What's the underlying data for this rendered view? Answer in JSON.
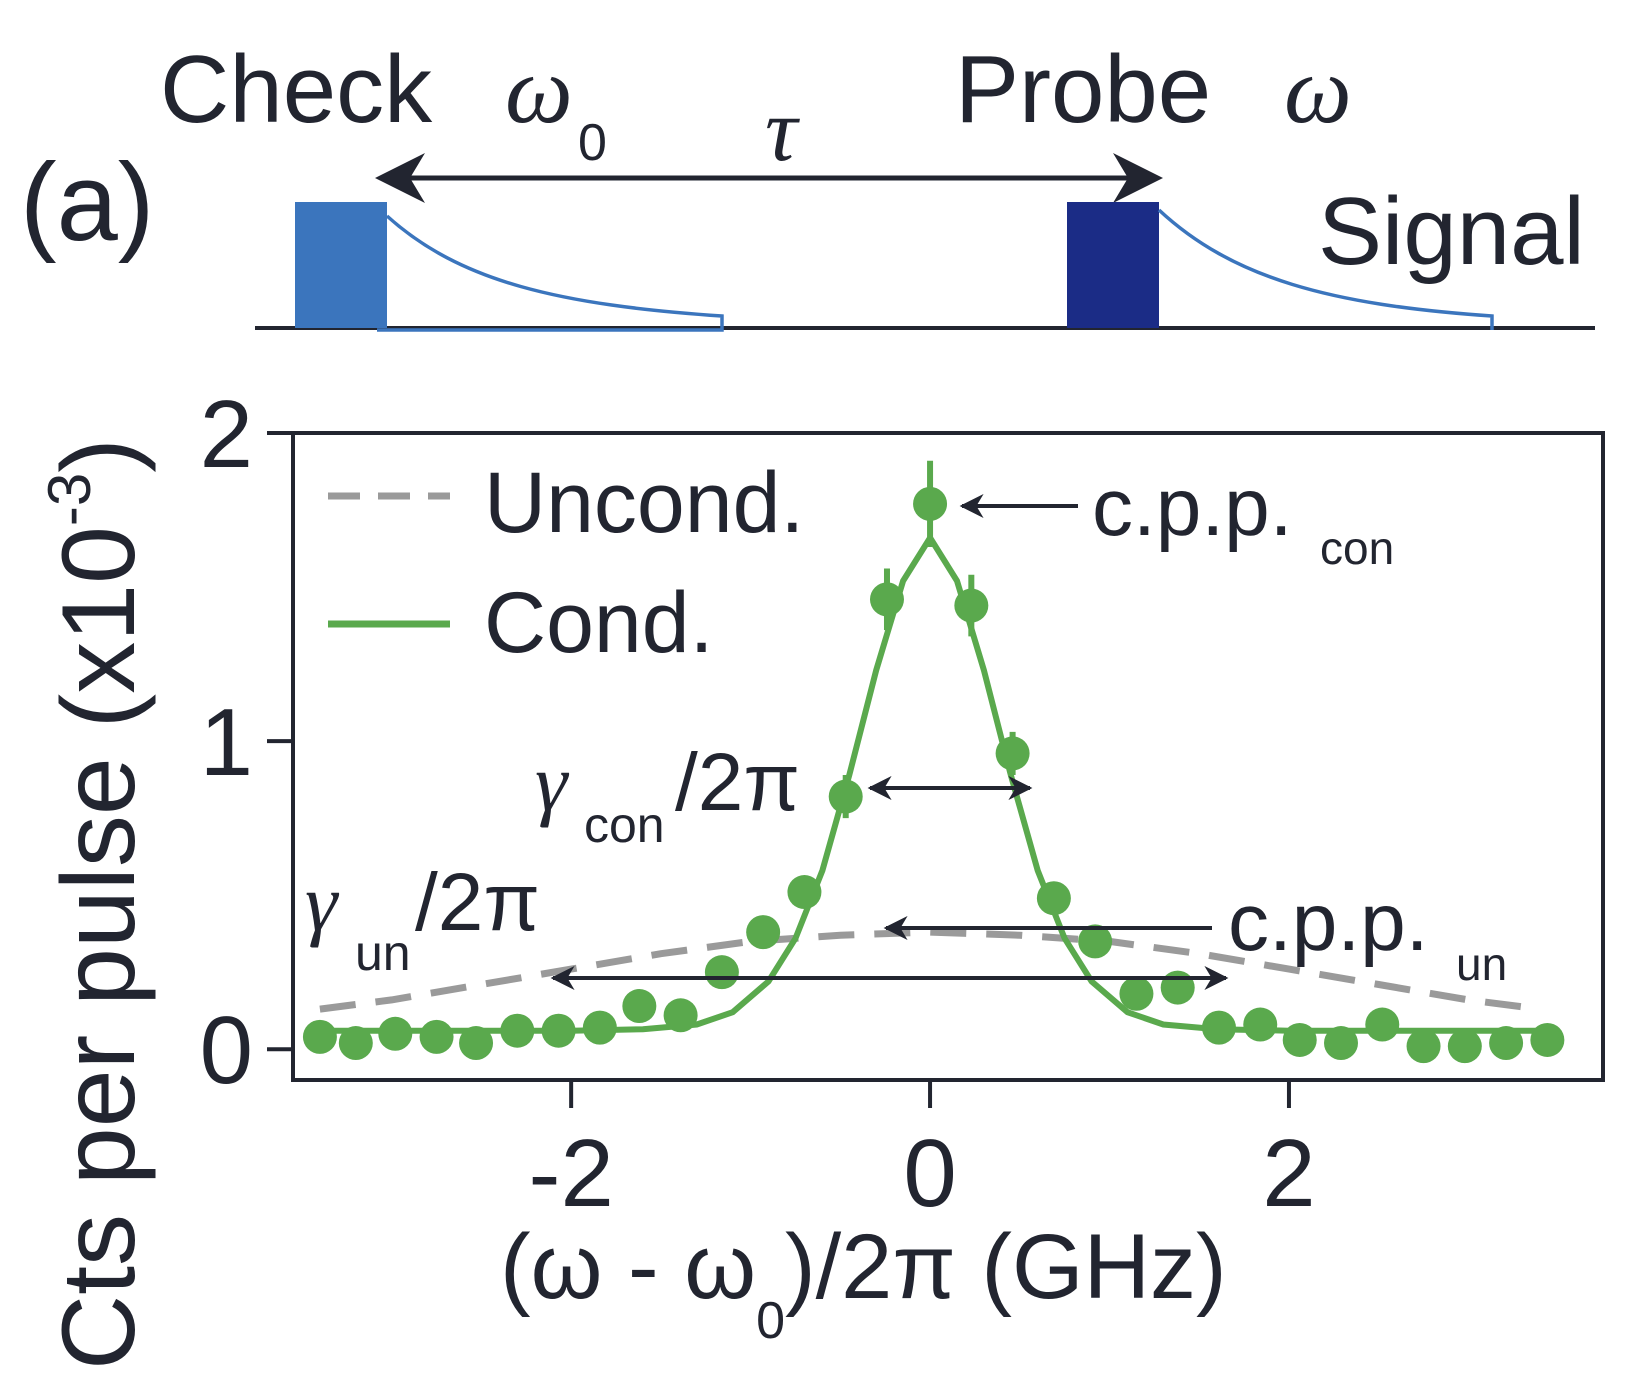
{
  "schematic": {
    "panel_label": "(a)",
    "check_label": "Check",
    "probe_label": "Probe",
    "check_symbol": "ω",
    "check_subscript": "0",
    "probe_symbol": "ω",
    "delay_symbol": "τ",
    "signal_label": "Signal",
    "check_pulse_color": "#3b75bd",
    "probe_pulse_color": "#1b2c86",
    "decay_color": "#3b75bd"
  },
  "chart_data": {
    "type": "scatter",
    "x_label": "(ω - ω",
    "x_label_subscript": "0",
    "x_label_suffix": ")/2π (GHz)",
    "y_label": "Cts per pulse (x10",
    "y_label_exp": "-3",
    "y_label_close": ")",
    "xlim": [
      -3.55,
      3.75
    ],
    "ylim": [
      -0.1,
      2.0
    ],
    "x_ticks": [
      -2,
      0,
      2
    ],
    "x_tick_labels": [
      "-2",
      "0",
      "2"
    ],
    "y_ticks": [
      0,
      1,
      2
    ],
    "y_tick_labels": [
      "0",
      "1",
      "2"
    ],
    "grid": false,
    "legend_position": "top-left",
    "legend": [
      {
        "label": "Uncond.",
        "style": "dashed",
        "color": "#9a9a9a"
      },
      {
        "label": "Cond.",
        "style": "solid",
        "color": "#5aa94d"
      }
    ],
    "series": [
      {
        "name": "Cond.",
        "kind": "points",
        "color": "#5aa94d",
        "x": [
          -3.4,
          -3.2,
          -2.98,
          -2.75,
          -2.53,
          -2.3,
          -2.07,
          -1.84,
          -1.62,
          -1.39,
          -1.16,
          -0.93,
          -0.7,
          -0.47,
          -0.24,
          0.0,
          0.23,
          0.46,
          0.69,
          0.92,
          1.15,
          1.38,
          1.61,
          1.84,
          2.06,
          2.29,
          2.52,
          2.75,
          2.98,
          3.21,
          3.44
        ],
        "y": [
          0.04,
          0.02,
          0.05,
          0.04,
          0.02,
          0.06,
          0.06,
          0.07,
          0.14,
          0.11,
          0.25,
          0.38,
          0.51,
          0.82,
          1.46,
          1.77,
          1.44,
          0.96,
          0.49,
          0.35,
          0.18,
          0.2,
          0.07,
          0.08,
          0.03,
          0.02,
          0.08,
          0.01,
          0.01,
          0.02,
          0.03
        ],
        "y_err": [
          0,
          0,
          0,
          0,
          0,
          0,
          0,
          0,
          0,
          0,
          0,
          0.04,
          0.04,
          0.07,
          0.1,
          0.14,
          0.1,
          0.07,
          0.04,
          0.04,
          0,
          0,
          0,
          0,
          0,
          0,
          0,
          0,
          0,
          0,
          0
        ]
      },
      {
        "name": "Cond.",
        "kind": "fit-line",
        "style": "solid",
        "color": "#5aa94d",
        "x": [
          -3.45,
          -3.0,
          -2.5,
          -2.0,
          -1.6,
          -1.3,
          -1.1,
          -0.9,
          -0.75,
          -0.6,
          -0.45,
          -0.3,
          -0.15,
          0.0,
          0.15,
          0.3,
          0.45,
          0.6,
          0.75,
          0.9,
          1.1,
          1.3,
          1.6,
          2.0,
          2.5,
          3.0,
          3.45
        ],
        "y": [
          0.06,
          0.06,
          0.06,
          0.06,
          0.065,
          0.08,
          0.12,
          0.22,
          0.36,
          0.58,
          0.89,
          1.23,
          1.52,
          1.66,
          1.52,
          1.23,
          0.89,
          0.58,
          0.36,
          0.22,
          0.12,
          0.08,
          0.065,
          0.06,
          0.06,
          0.06,
          0.06
        ]
      },
      {
        "name": "Uncond.",
        "kind": "fit-line",
        "style": "dashed",
        "color": "#9a9a9a",
        "x": [
          -3.4,
          -3.0,
          -2.5,
          -2.0,
          -1.5,
          -1.0,
          -0.5,
          0.0,
          0.5,
          1.0,
          1.5,
          2.0,
          2.5,
          3.0,
          3.4
        ],
        "y": [
          0.13,
          0.16,
          0.21,
          0.26,
          0.31,
          0.35,
          0.37,
          0.38,
          0.37,
          0.35,
          0.31,
          0.26,
          0.21,
          0.16,
          0.13
        ]
      }
    ],
    "annotations": {
      "cpp_con": "c.p.p.",
      "cpp_con_sub": "con",
      "cpp_un": "c.p.p.",
      "cpp_un_sub": "un",
      "gamma_con": "γ",
      "gamma_con_sub": "con",
      "gamma_con_suffix": "/2π",
      "gamma_un": "γ",
      "gamma_un_sub": "un",
      "gamma_un_suffix": "/2π"
    }
  }
}
